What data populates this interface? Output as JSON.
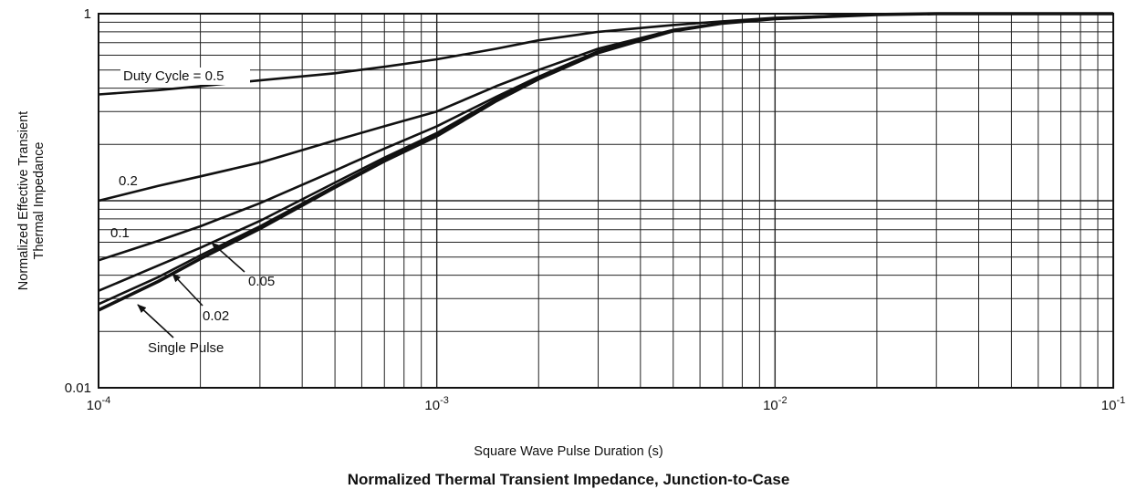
{
  "chart_data": {
    "type": "line",
    "title": "Normalized Thermal Transient Impedance, Junction-to-Case",
    "xlabel": "Square Wave Pulse Duration (s)",
    "ylabel": "Normalized Effective Transient Thermal Impedance",
    "x_scale": "log",
    "y_scale": "log",
    "xlim": [
      0.0001,
      0.1
    ],
    "ylim": [
      0.01,
      1
    ],
    "grid": true,
    "x_ticks": [
      {
        "base": "10",
        "exp": "-4"
      },
      {
        "base": "10",
        "exp": "-3"
      },
      {
        "base": "10",
        "exp": "-2"
      },
      {
        "base": "10",
        "exp": "-1"
      }
    ],
    "y_ticks": [
      "0.01",
      "1"
    ],
    "series": [
      {
        "name": "Duty Cycle = 0.5",
        "x": [
          0.0001,
          0.00015,
          0.0002,
          0.0003,
          0.0005,
          0.0007,
          0.001,
          0.0015,
          0.002,
          0.003,
          0.005,
          0.007,
          0.01,
          0.02,
          0.03,
          0.1
        ],
        "y": [
          0.37,
          0.39,
          0.41,
          0.44,
          0.48,
          0.52,
          0.57,
          0.65,
          0.72,
          0.8,
          0.87,
          0.91,
          0.95,
          0.99,
          1.0,
          1.0
        ]
      },
      {
        "name": "0.2",
        "x": [
          0.0001,
          0.00015,
          0.0002,
          0.0003,
          0.0005,
          0.0007,
          0.001,
          0.0015,
          0.002,
          0.003,
          0.005,
          0.007,
          0.01,
          0.02,
          0.03,
          0.1
        ],
        "y": [
          0.1,
          0.12,
          0.135,
          0.16,
          0.21,
          0.25,
          0.3,
          0.41,
          0.5,
          0.65,
          0.82,
          0.89,
          0.94,
          0.99,
          1.0,
          1.0
        ]
      },
      {
        "name": "0.1",
        "x": [
          0.0001,
          0.00015,
          0.0002,
          0.0003,
          0.0005,
          0.0007,
          0.001,
          0.0015,
          0.002,
          0.003,
          0.005,
          0.007,
          0.01,
          0.02,
          0.03,
          0.1
        ],
        "y": [
          0.048,
          0.061,
          0.073,
          0.097,
          0.145,
          0.19,
          0.25,
          0.36,
          0.46,
          0.63,
          0.81,
          0.89,
          0.94,
          0.99,
          1.0,
          1.0
        ]
      },
      {
        "name": "0.05",
        "x": [
          0.0001,
          0.00015,
          0.0002,
          0.0003,
          0.0005,
          0.0007,
          0.001,
          0.0015,
          0.002,
          0.003,
          0.005,
          0.007,
          0.01,
          0.02,
          0.03,
          0.1
        ],
        "y": [
          0.033,
          0.045,
          0.056,
          0.078,
          0.125,
          0.17,
          0.23,
          0.35,
          0.455,
          0.625,
          0.81,
          0.89,
          0.94,
          0.99,
          1.0,
          1.0
        ]
      },
      {
        "name": "0.02",
        "x": [
          0.0001,
          0.00015,
          0.0002,
          0.0003,
          0.0005,
          0.0007,
          0.001,
          0.0015,
          0.002,
          0.003,
          0.005,
          0.007,
          0.01,
          0.02,
          0.03,
          0.1
        ],
        "y": [
          0.028,
          0.039,
          0.051,
          0.073,
          0.12,
          0.165,
          0.225,
          0.345,
          0.45,
          0.62,
          0.81,
          0.89,
          0.94,
          0.99,
          1.0,
          1.0
        ]
      },
      {
        "name": "Single Pulse",
        "x": [
          0.0001,
          0.00015,
          0.0002,
          0.0003,
          0.0005,
          0.0007,
          0.001,
          0.0015,
          0.002,
          0.003,
          0.005,
          0.007,
          0.01,
          0.02,
          0.03,
          0.1
        ],
        "y": [
          0.026,
          0.037,
          0.049,
          0.071,
          0.118,
          0.163,
          0.222,
          0.342,
          0.448,
          0.618,
          0.81,
          0.89,
          0.94,
          0.99,
          1.0,
          1.0
        ]
      }
    ],
    "annotations": [
      {
        "text": "Duty Cycle = 0.5",
        "series": "Duty Cycle = 0.5",
        "arrow": false
      },
      {
        "text": "0.2",
        "series": "0.2",
        "arrow": false
      },
      {
        "text": "0.1",
        "series": "0.1",
        "arrow": false
      },
      {
        "text": "0.05",
        "series": "0.05",
        "arrow": true
      },
      {
        "text": "0.02",
        "series": "0.02",
        "arrow": true
      },
      {
        "text": "Single Pulse",
        "series": "Single Pulse",
        "arrow": true
      }
    ]
  }
}
